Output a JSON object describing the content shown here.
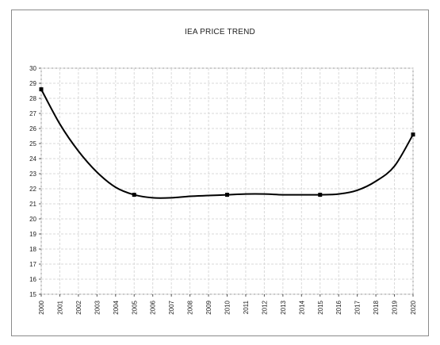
{
  "chart_data": {
    "type": "line",
    "title": "IEA PRICE TREND",
    "xlabel": "",
    "ylabel": "",
    "x": [
      "2000",
      "2001",
      "2002",
      "2003",
      "2004",
      "2005",
      "2006",
      "2007",
      "2008",
      "2009",
      "2010",
      "2011",
      "2012",
      "2013",
      "2014",
      "2015",
      "2016",
      "2017",
      "2018",
      "2019",
      "2020"
    ],
    "ylim": [
      15,
      30
    ],
    "yticks": [
      15,
      16,
      17,
      18,
      19,
      20,
      21,
      22,
      23,
      24,
      25,
      26,
      27,
      28,
      29,
      30
    ],
    "grid": true,
    "legend": "none",
    "line_color": "#000000",
    "series": [
      {
        "values": [
          28.6,
          26.3,
          24.5,
          23.1,
          22.1,
          21.6,
          21.4,
          21.4,
          21.5,
          21.55,
          21.6,
          21.65,
          21.65,
          21.6,
          21.6,
          21.6,
          21.65,
          21.9,
          22.5,
          23.5,
          25.6
        ],
        "markers_at": [
          "2000",
          "2005",
          "2010",
          "2015",
          "2020"
        ]
      }
    ]
  }
}
